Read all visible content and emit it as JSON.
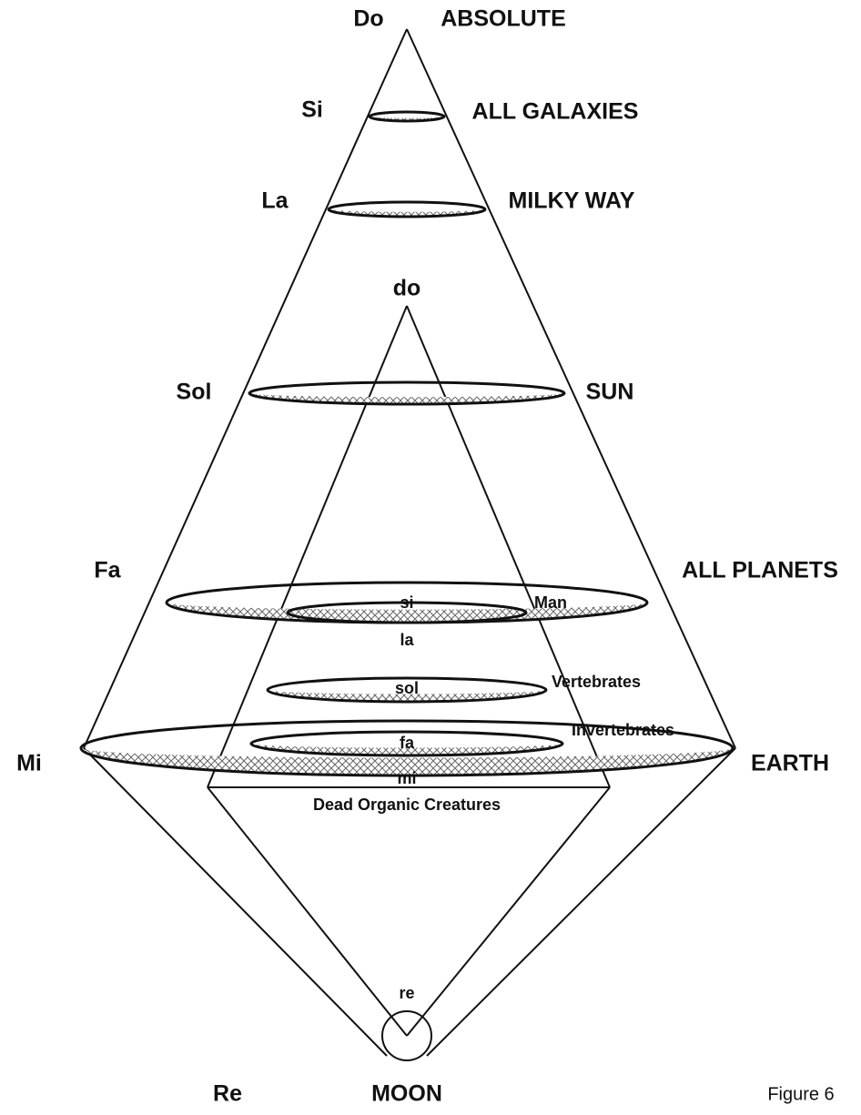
{
  "cosmic_octave": [
    {
      "note": "Do",
      "name": "ABSOLUTE"
    },
    {
      "note": "Si",
      "name": "ALL GALAXIES"
    },
    {
      "note": "La",
      "name": "MILKY WAY"
    },
    {
      "note": "Sol",
      "name": "SUN"
    },
    {
      "note": "Fa",
      "name": "ALL PLANETS"
    },
    {
      "note": "Mi",
      "name": "EARTH"
    },
    {
      "note": "Re",
      "name": "MOON"
    }
  ],
  "organic_octave": {
    "notes": [
      "do",
      "si",
      "la",
      "sol",
      "fa",
      "mi",
      "re"
    ],
    "levels": [
      "Man",
      "Vertebrates",
      "Invertebrates",
      "Dead Organic Creatures"
    ]
  },
  "figure_label": "Figure 6"
}
